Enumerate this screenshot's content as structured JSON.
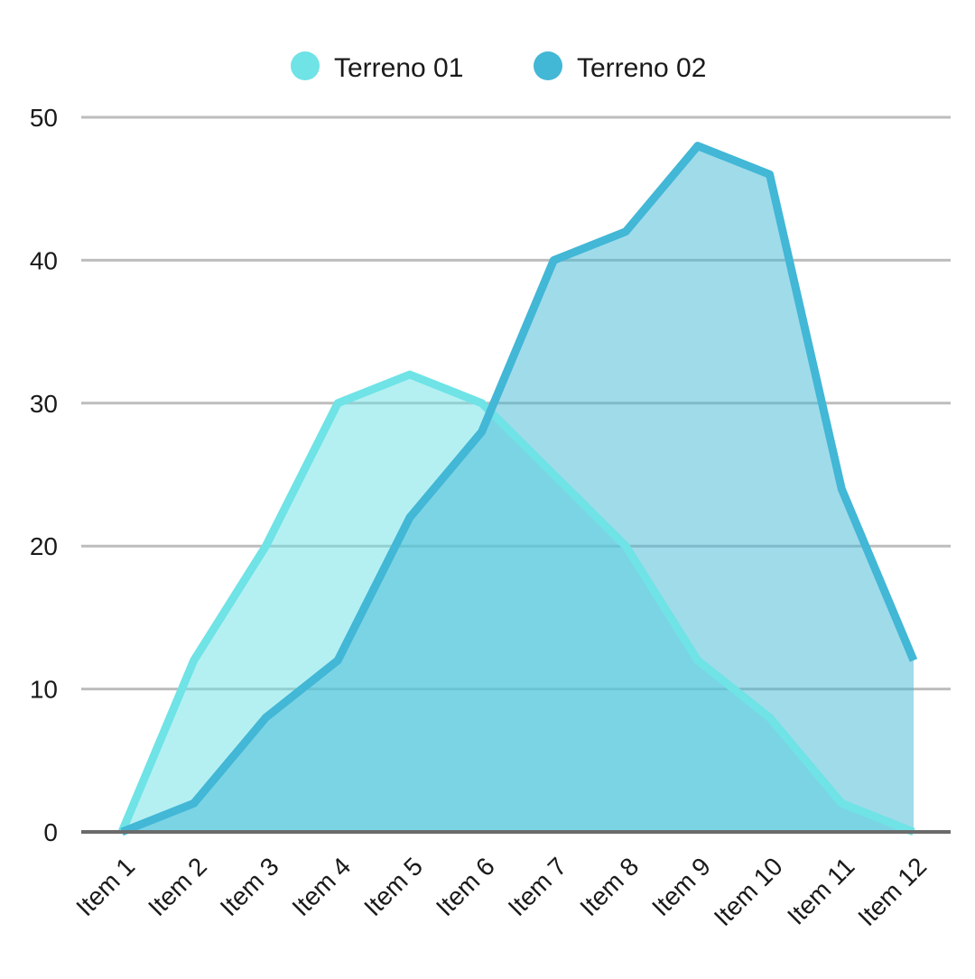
{
  "chart_data": {
    "type": "area",
    "title": "",
    "xlabel": "",
    "ylabel": "",
    "categories": [
      "Item 1",
      "Item 2",
      "Item 3",
      "Item 4",
      "Item 5",
      "Item 6",
      "Item 7",
      "Item 8",
      "Item 9",
      "Item 10",
      "Item 11",
      "Item 12"
    ],
    "ylim": [
      0,
      50
    ],
    "yticks": [
      "0",
      "10",
      "20",
      "30",
      "40",
      "50"
    ],
    "grid": true,
    "legend_position": "top",
    "series": [
      {
        "name": "Terreno 01",
        "values": [
          0,
          12,
          20,
          30,
          32,
          30,
          25,
          20,
          12,
          8,
          2,
          0
        ],
        "line_color": "#6fe3e6",
        "fill_color": "#6fe3e6"
      },
      {
        "name": "Terreno 02",
        "values": [
          0,
          2,
          8,
          12,
          22,
          28,
          40,
          42,
          48,
          46,
          24,
          12
        ],
        "line_color": "#42b7d6",
        "fill_color": "#42b7d6"
      }
    ]
  }
}
